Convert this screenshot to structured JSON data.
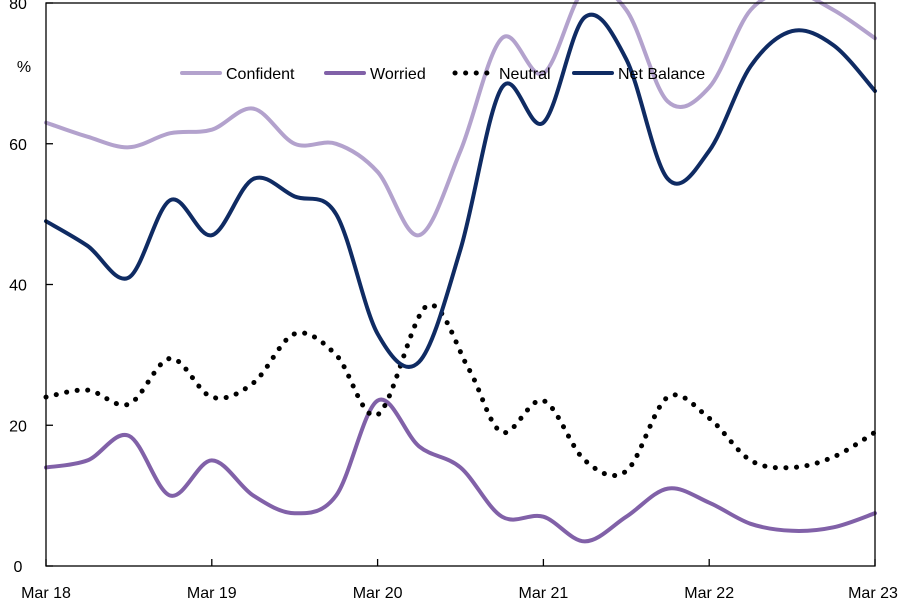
{
  "chart_data": {
    "type": "line",
    "unit_label": "%",
    "ylim": [
      0,
      80
    ],
    "yticks": [
      "0",
      "20",
      "40",
      "60",
      "80"
    ],
    "x_range": [
      0,
      5
    ],
    "x_tick_labels": [
      "Mar 18",
      "Mar 19",
      "Mar 20",
      "Mar 21",
      "Mar 22",
      "Mar 23"
    ],
    "grid": false,
    "legend_position": "top",
    "series": [
      {
        "name": "Confident",
        "color": "#b3a2cd",
        "style": "solid",
        "points": [
          [
            0,
            63
          ],
          [
            0.25,
            61
          ],
          [
            0.5,
            59.5
          ],
          [
            0.75,
            61.5
          ],
          [
            1.0,
            62
          ],
          [
            1.25,
            65
          ],
          [
            1.5,
            60
          ],
          [
            1.75,
            60
          ],
          [
            2.0,
            56
          ],
          [
            2.25,
            47
          ],
          [
            2.5,
            59
          ],
          [
            2.75,
            75
          ],
          [
            3.0,
            70
          ],
          [
            3.25,
            82
          ],
          [
            3.5,
            79
          ],
          [
            3.75,
            66
          ],
          [
            4.0,
            68
          ],
          [
            4.25,
            79
          ],
          [
            4.5,
            81.5
          ],
          [
            4.75,
            79
          ],
          [
            5.0,
            75
          ]
        ]
      },
      {
        "name": "Worried",
        "color": "#8161a8",
        "style": "solid",
        "points": [
          [
            0,
            14
          ],
          [
            0.25,
            15
          ],
          [
            0.5,
            18.5
          ],
          [
            0.75,
            10
          ],
          [
            1.0,
            15
          ],
          [
            1.25,
            10
          ],
          [
            1.5,
            7.5
          ],
          [
            1.75,
            10
          ],
          [
            2.0,
            23.5
          ],
          [
            2.25,
            17
          ],
          [
            2.5,
            14
          ],
          [
            2.75,
            7
          ],
          [
            3.0,
            7
          ],
          [
            3.25,
            3.5
          ],
          [
            3.5,
            7
          ],
          [
            3.75,
            11
          ],
          [
            4.0,
            9
          ],
          [
            4.25,
            6
          ],
          [
            4.5,
            5
          ],
          [
            4.75,
            5.5
          ],
          [
            5.0,
            7.5
          ]
        ]
      },
      {
        "name": "Neutral",
        "color": "#000000",
        "style": "dotted",
        "points": [
          [
            0,
            24
          ],
          [
            0.25,
            25
          ],
          [
            0.5,
            23
          ],
          [
            0.75,
            29.5
          ],
          [
            1.0,
            24
          ],
          [
            1.25,
            26
          ],
          [
            1.5,
            33
          ],
          [
            1.75,
            30
          ],
          [
            2.0,
            21.5
          ],
          [
            2.3,
            37
          ],
          [
            2.55,
            28
          ],
          [
            2.75,
            19
          ],
          [
            3.0,
            23.5
          ],
          [
            3.25,
            15
          ],
          [
            3.5,
            13.5
          ],
          [
            3.75,
            24
          ],
          [
            4.0,
            21
          ],
          [
            4.25,
            15
          ],
          [
            4.5,
            14
          ],
          [
            4.75,
            15.5
          ],
          [
            5.0,
            19
          ]
        ]
      },
      {
        "name": "Net Balance",
        "color": "#0f2b63",
        "style": "solid",
        "points": [
          [
            0,
            49
          ],
          [
            0.25,
            45.5
          ],
          [
            0.5,
            41
          ],
          [
            0.75,
            52
          ],
          [
            1.0,
            47
          ],
          [
            1.25,
            55
          ],
          [
            1.5,
            52.5
          ],
          [
            1.75,
            50
          ],
          [
            2.0,
            33
          ],
          [
            2.25,
            29
          ],
          [
            2.5,
            45
          ],
          [
            2.75,
            68
          ],
          [
            3.0,
            63
          ],
          [
            3.25,
            78
          ],
          [
            3.5,
            72
          ],
          [
            3.75,
            55
          ],
          [
            4.0,
            59
          ],
          [
            4.25,
            71
          ],
          [
            4.5,
            76
          ],
          [
            4.75,
            74
          ],
          [
            5.0,
            67.5
          ]
        ]
      }
    ]
  }
}
